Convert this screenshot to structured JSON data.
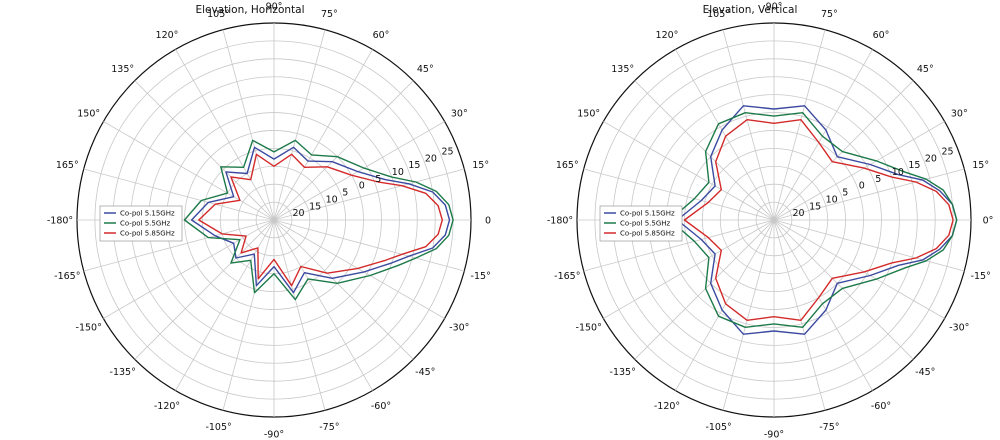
{
  "chart_data": [
    {
      "type": "polar-line",
      "title": "Elevation, Horizontal",
      "angle_tick_labels": [
        "0",
        "15°",
        "30°",
        "45°",
        "60°",
        "75°",
        "90°",
        "105°",
        "120°",
        "135°",
        "150°",
        "165°",
        "-180°",
        "-165°",
        "-150°",
        "-135°",
        "-120°",
        "-105°",
        "-90°",
        "-75°",
        "-60°",
        "-45°",
        "-30°",
        "-15°"
      ],
      "angle_ticks_deg": [
        0,
        15,
        30,
        45,
        60,
        75,
        90,
        105,
        120,
        135,
        150,
        165,
        180,
        195,
        210,
        225,
        240,
        255,
        270,
        285,
        300,
        315,
        330,
        345
      ],
      "radial_tick_labels": [
        "20",
        "15",
        "10",
        "5",
        "0",
        "5",
        "10",
        "15",
        "20",
        "25"
      ],
      "radial_tick_values": [
        -20,
        -15,
        -10,
        -5,
        0,
        5,
        10,
        15,
        20,
        25
      ],
      "rlim": [
        -25,
        30
      ],
      "grid": true,
      "legend_position": "left",
      "series": [
        {
          "name": "Co-pol 5.15GHz",
          "color": "#3b4aa0",
          "angles_deg": [
            -180,
            -165,
            -150,
            -135,
            -120,
            -105,
            -90,
            -75,
            -60,
            -45,
            -30,
            -20,
            -15,
            -10,
            -5,
            0,
            5,
            10,
            15,
            20,
            30,
            45,
            60,
            75,
            90,
            105,
            120,
            135,
            150,
            165,
            180
          ],
          "values": [
            -2,
            -8,
            -12,
            -10,
            -14,
            -6,
            -12,
            -4,
            -8,
            -2,
            4,
            10,
            14,
            20,
            23,
            24,
            23,
            20,
            14,
            8,
            2,
            -2,
            -6,
            -4,
            -8,
            -4,
            -10,
            -6,
            -12,
            -6,
            -2
          ]
        },
        {
          "name": "Co-pol 5.5GHz",
          "color": "#1e7a4a",
          "angles_deg": [
            -180,
            -165,
            -150,
            -135,
            -120,
            -105,
            -90,
            -75,
            -60,
            -45,
            -30,
            -20,
            -15,
            -10,
            -5,
            0,
            5,
            10,
            15,
            20,
            30,
            45,
            60,
            75,
            90,
            105,
            120,
            135,
            150,
            165,
            180
          ],
          "values": [
            0,
            -6,
            -14,
            -8,
            -12,
            -4,
            -10,
            -2,
            -6,
            0,
            6,
            12,
            16,
            21,
            24,
            25,
            24,
            21,
            16,
            10,
            4,
            0,
            -4,
            -2,
            -6,
            -2,
            -8,
            -4,
            -10,
            -4,
            0
          ]
        },
        {
          "name": "Co-pol 5.85GHz",
          "color": "#d42a2a",
          "angles_deg": [
            -180,
            -165,
            -150,
            -135,
            -120,
            -105,
            -90,
            -75,
            -60,
            -45,
            -30,
            -20,
            -15,
            -10,
            -5,
            0,
            5,
            10,
            15,
            20,
            30,
            45,
            60,
            75,
            90,
            105,
            120,
            135,
            150,
            165,
            180
          ],
          "values": [
            -4,
            -10,
            -16,
            -12,
            -16,
            -8,
            -14,
            -6,
            -10,
            -4,
            2,
            8,
            12,
            18,
            21,
            22,
            21,
            18,
            12,
            6,
            0,
            -4,
            -8,
            -6,
            -10,
            -6,
            -12,
            -8,
            -14,
            -8,
            -4
          ]
        }
      ]
    },
    {
      "type": "polar-line",
      "title": "Elevation, Vertical",
      "angle_tick_labels": [
        "0°",
        "15°",
        "30°",
        "45°",
        "60°",
        "75°",
        "90°",
        "105°",
        "120°",
        "135°",
        "150°",
        "165°",
        "-180°",
        "-165°",
        "-150°",
        "-135°",
        "-120°",
        "-105°",
        "-90°",
        "-75°",
        "-60°",
        "-45°",
        "-30°",
        "-15°"
      ],
      "angle_ticks_deg": [
        0,
        15,
        30,
        45,
        60,
        75,
        90,
        105,
        120,
        135,
        150,
        165,
        180,
        195,
        210,
        225,
        240,
        255,
        270,
        285,
        300,
        315,
        330,
        345
      ],
      "radial_tick_labels": [
        "20",
        "15",
        "10",
        "5",
        "0",
        "5",
        "10",
        "15",
        "20",
        "25"
      ],
      "radial_tick_values": [
        -20,
        -15,
        -10,
        -5,
        0,
        5,
        10,
        15,
        20,
        25
      ],
      "rlim": [
        -25,
        30
      ],
      "grid": true,
      "legend_position": "left",
      "series": [
        {
          "name": "Co-pol 5.15GHz",
          "color": "#3b4aa0",
          "angles_deg": [
            -180,
            -165,
            -150,
            -135,
            -120,
            -105,
            -90,
            -75,
            -60,
            -45,
            -30,
            -20,
            -15,
            -10,
            -5,
            0,
            5,
            10,
            15,
            20,
            30,
            45,
            60,
            75,
            90,
            105,
            120,
            135,
            150,
            165,
            180
          ],
          "values": [
            2,
            -4,
            -6,
            0,
            4,
            8,
            6,
            8,
            4,
            0,
            6,
            12,
            18,
            22,
            25,
            26,
            25,
            22,
            18,
            12,
            6,
            0,
            4,
            8,
            6,
            8,
            4,
            0,
            -6,
            -4,
            2
          ]
        },
        {
          "name": "Co-pol 5.5GHz",
          "color": "#1e7a4a",
          "angles_deg": [
            -180,
            -165,
            -150,
            -135,
            -120,
            -105,
            -90,
            -75,
            -60,
            -45,
            -30,
            -20,
            -15,
            -10,
            -5,
            0,
            5,
            10,
            15,
            20,
            30,
            45,
            60,
            75,
            90,
            105,
            120,
            135,
            150,
            165,
            180
          ],
          "values": [
            4,
            -2,
            -4,
            2,
            6,
            6,
            4,
            6,
            2,
            2,
            8,
            14,
            19,
            23,
            25,
            26,
            25,
            23,
            19,
            14,
            8,
            2,
            2,
            6,
            4,
            6,
            6,
            2,
            -4,
            -2,
            4
          ]
        },
        {
          "name": "Co-pol 5.85GHz",
          "color": "#d42a2a",
          "angles_deg": [
            -180,
            -165,
            -150,
            -135,
            -120,
            -105,
            -90,
            -75,
            -60,
            -45,
            -30,
            -20,
            -15,
            -10,
            -5,
            0,
            5,
            10,
            15,
            20,
            30,
            45,
            60,
            75,
            90,
            105,
            120,
            135,
            150,
            165,
            180
          ],
          "values": [
            0,
            -6,
            -8,
            -2,
            2,
            4,
            2,
            4,
            0,
            -2,
            4,
            10,
            16,
            21,
            24,
            25,
            24,
            21,
            16,
            10,
            4,
            -2,
            0,
            4,
            2,
            4,
            2,
            -2,
            -8,
            -6,
            0
          ]
        }
      ]
    }
  ]
}
